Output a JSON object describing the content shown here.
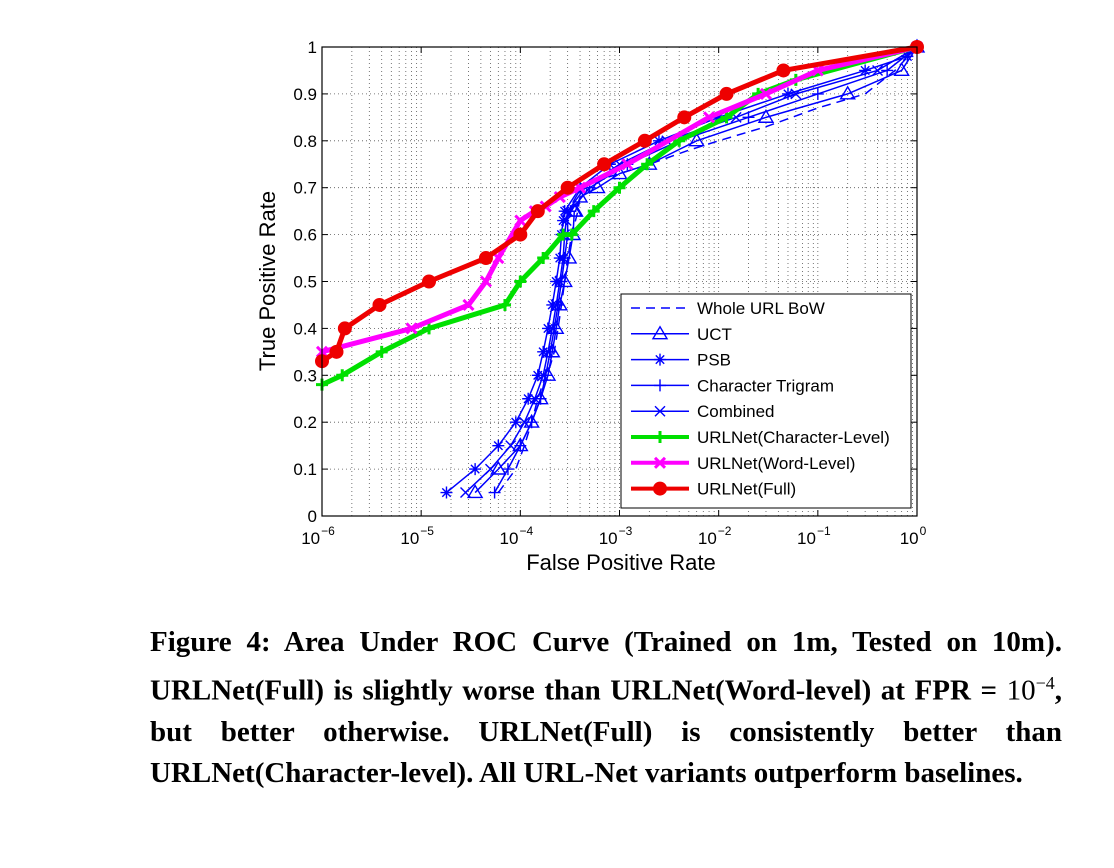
{
  "chart_data": {
    "type": "line",
    "xlabel": "False Positive Rate",
    "ylabel": "True Positive Rate",
    "xscale": "log",
    "xlim": [
      1e-06,
      1
    ],
    "ylim": [
      0,
      1
    ],
    "x_ticks": [
      {
        "base": "10",
        "exp": "−6"
      },
      {
        "base": "10",
        "exp": "−5"
      },
      {
        "base": "10",
        "exp": "−4"
      },
      {
        "base": "10",
        "exp": "−3"
      },
      {
        "base": "10",
        "exp": "−2"
      },
      {
        "base": "10",
        "exp": "−1"
      },
      {
        "base": "10",
        "exp": "0"
      }
    ],
    "y_ticks": [
      "0",
      "0.1",
      "0.2",
      "0.3",
      "0.4",
      "0.5",
      "0.6",
      "0.7",
      "0.8",
      "0.9",
      "1"
    ],
    "grid": true,
    "legend_position": "bottom-right",
    "series": [
      {
        "name": "Whole URL BoW",
        "color": "#0000ff",
        "width": 1.5,
        "dash": "dashed",
        "marker": "none",
        "x": [
          6e-05,
          9e-05,
          0.00011,
          0.00013,
          0.00015,
          0.00018,
          0.0002,
          0.00022,
          0.00024,
          0.00026,
          0.00028,
          0.0003,
          0.00033,
          0.00036,
          0.00038,
          0.0004,
          0.0005,
          0.0007,
          0.001,
          0.002,
          0.005,
          0.01,
          0.03,
          0.1,
          0.3,
          0.6,
          1
        ],
        "y": [
          0.05,
          0.1,
          0.15,
          0.2,
          0.25,
          0.3,
          0.32,
          0.35,
          0.4,
          0.45,
          0.5,
          0.55,
          0.6,
          0.63,
          0.65,
          0.68,
          0.7,
          0.72,
          0.73,
          0.75,
          0.78,
          0.8,
          0.83,
          0.87,
          0.9,
          0.95,
          1
        ]
      },
      {
        "name": "UCT",
        "color": "#0000ff",
        "width": 1.5,
        "dash": "solid",
        "marker": "triangle",
        "x": [
          3.5e-05,
          6e-05,
          0.0001,
          0.00013,
          0.00016,
          0.00019,
          0.00021,
          0.00023,
          0.00025,
          0.00028,
          0.00031,
          0.00034,
          0.00035,
          0.00036,
          0.0004,
          0.0006,
          0.001,
          0.002,
          0.006,
          0.03,
          0.2,
          0.7,
          1
        ],
        "y": [
          0.05,
          0.1,
          0.15,
          0.2,
          0.25,
          0.3,
          0.35,
          0.4,
          0.45,
          0.5,
          0.55,
          0.6,
          0.65,
          0.65,
          0.68,
          0.7,
          0.73,
          0.75,
          0.8,
          0.85,
          0.9,
          0.95,
          1
        ]
      },
      {
        "name": "PSB",
        "color": "#0000ff",
        "width": 1.5,
        "dash": "solid",
        "marker": "star",
        "x": [
          1.8e-05,
          3.5e-05,
          6e-05,
          9e-05,
          0.00012,
          0.00015,
          0.00017,
          0.00019,
          0.00021,
          0.00023,
          0.00025,
          0.00026,
          0.00027,
          0.00028,
          0.0004,
          0.0008,
          0.0025,
          0.01,
          0.05,
          0.3,
          0.8,
          1
        ],
        "y": [
          0.05,
          0.1,
          0.15,
          0.2,
          0.25,
          0.3,
          0.35,
          0.4,
          0.45,
          0.5,
          0.55,
          0.6,
          0.63,
          0.65,
          0.7,
          0.75,
          0.8,
          0.85,
          0.9,
          0.95,
          0.98,
          1
        ]
      },
      {
        "name": "Character Trigram",
        "color": "#0000ff",
        "width": 1.5,
        "dash": "solid",
        "marker": "plus",
        "x": [
          5.5e-05,
          7.5e-05,
          0.0001,
          0.00013,
          0.00016,
          0.00018,
          0.0002,
          0.00022,
          0.00024,
          0.00026,
          0.00028,
          0.0003,
          0.0003,
          0.00032,
          0.0005,
          0.0012,
          0.004,
          0.02,
          0.1,
          0.5,
          1
        ],
        "y": [
          0.05,
          0.1,
          0.15,
          0.2,
          0.25,
          0.3,
          0.35,
          0.4,
          0.45,
          0.5,
          0.55,
          0.6,
          0.65,
          0.65,
          0.7,
          0.75,
          0.8,
          0.85,
          0.9,
          0.95,
          1
        ]
      },
      {
        "name": "Combined",
        "color": "#0000ff",
        "width": 1.5,
        "dash": "solid",
        "marker": "x",
        "x": [
          2.8e-05,
          5e-05,
          8e-05,
          0.00011,
          0.00014,
          0.00017,
          0.00019,
          0.00021,
          0.00023,
          0.00025,
          0.00027,
          0.00028,
          0.00029,
          0.0003,
          0.00045,
          0.001,
          0.003,
          0.015,
          0.06,
          0.4,
          1
        ],
        "y": [
          0.05,
          0.1,
          0.15,
          0.2,
          0.25,
          0.3,
          0.35,
          0.4,
          0.45,
          0.5,
          0.55,
          0.6,
          0.63,
          0.65,
          0.7,
          0.75,
          0.8,
          0.85,
          0.9,
          0.95,
          1
        ]
      },
      {
        "name": "URLNet(Character-Level)",
        "color": "#00e000",
        "width": 5,
        "dash": "solid",
        "marker": "plus",
        "x": [
          1e-06,
          1.6e-06,
          4e-06,
          1.2e-05,
          7e-05,
          0.0001,
          0.00017,
          0.00027,
          0.00033,
          0.00055,
          0.001,
          0.0019,
          0.004,
          0.012,
          0.025,
          0.06,
          1
        ],
        "y": [
          0.28,
          0.3,
          0.35,
          0.4,
          0.45,
          0.5,
          0.55,
          0.6,
          0.6,
          0.65,
          0.7,
          0.75,
          0.8,
          0.85,
          0.9,
          0.93,
          1
        ]
      },
      {
        "name": "URLNet(Word-Level)",
        "color": "#ff00ff",
        "width": 5,
        "dash": "solid",
        "marker": "x",
        "x": [
          1e-06,
          8e-06,
          3e-05,
          4.5e-05,
          6e-05,
          0.0001,
          0.00014,
          0.00018,
          0.00025,
          0.0004,
          0.0012,
          0.008,
          0.03,
          0.1,
          1
        ],
        "y": [
          0.35,
          0.4,
          0.45,
          0.5,
          0.55,
          0.63,
          0.65,
          0.66,
          0.68,
          0.7,
          0.75,
          0.85,
          0.9,
          0.95,
          1
        ]
      },
      {
        "name": "URLNet(Full)",
        "color": "#ee0000",
        "width": 5,
        "dash": "solid",
        "marker": "circle",
        "x": [
          1e-06,
          1.4e-06,
          1.7e-06,
          3.8e-06,
          1.2e-05,
          4.5e-05,
          0.0001,
          0.00015,
          0.0003,
          0.0007,
          0.0018,
          0.0045,
          0.012,
          0.045,
          1
        ],
        "y": [
          0.33,
          0.35,
          0.4,
          0.45,
          0.5,
          0.55,
          0.6,
          0.65,
          0.7,
          0.75,
          0.8,
          0.85,
          0.9,
          0.95,
          1
        ]
      }
    ]
  },
  "caption": {
    "part1": "Figure 4: Area Under ROC Curve (Trained on 1m, Tested on 10m). URLNet(Full) is slightly worse than URLNet(Word-level) at FPR = ",
    "math_base": "10",
    "math_exp": "−4",
    "part2": ", but better otherwise. URLNet(Full) is consistently better than URLNet(Character-level). All URL-Net variants outperform baselines."
  }
}
